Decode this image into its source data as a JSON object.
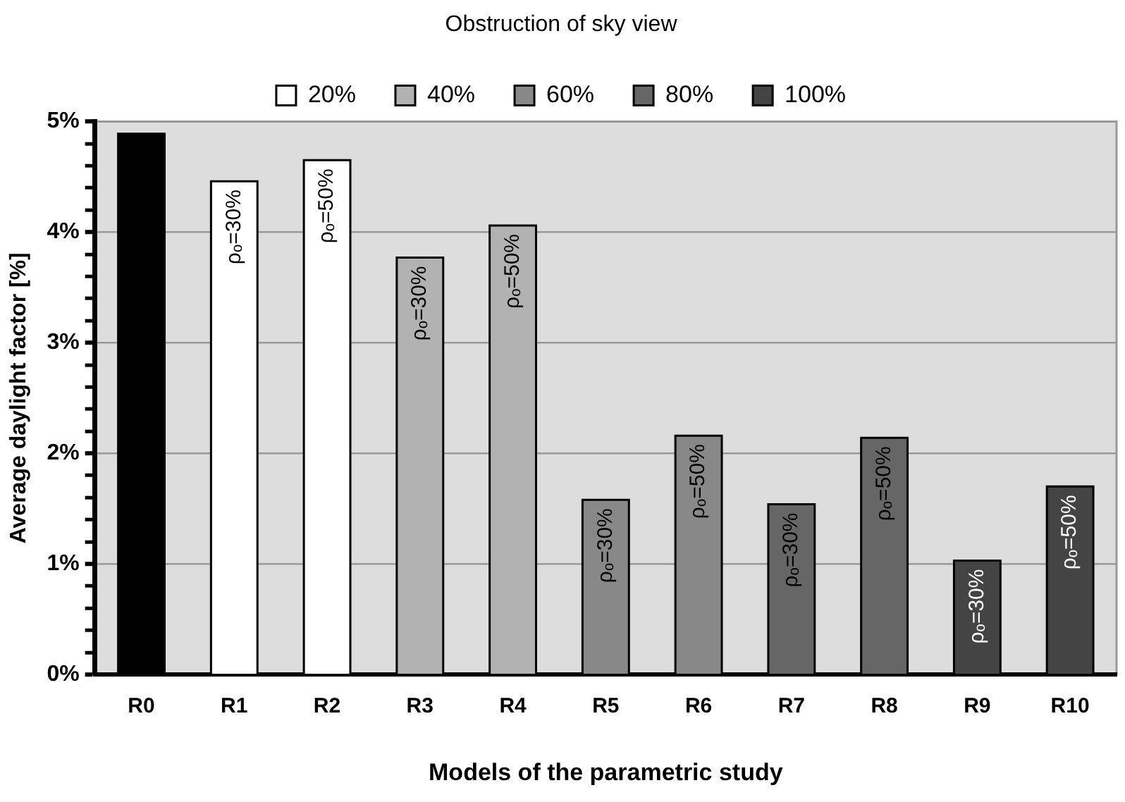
{
  "chart_data": {
    "type": "bar",
    "title": "Obstruction of sky view",
    "xlabel": "Models of the parametric study",
    "ylabel": "Average daylight factor [%]",
    "categories": [
      "R0",
      "R1",
      "R2",
      "R3",
      "R4",
      "R5",
      "R6",
      "R7",
      "R8",
      "R9",
      "R10"
    ],
    "series": [
      {
        "color": "#000000",
        "values": [
          4.89,
          null,
          null,
          null,
          null,
          null,
          null,
          null,
          null,
          null,
          null
        ]
      },
      {
        "name": "20%",
        "color": "#ffffff",
        "values": [
          null,
          4.46,
          4.65,
          null,
          null,
          null,
          null,
          null,
          null,
          null,
          null
        ]
      },
      {
        "name": "40%",
        "color": "#b2b2b2",
        "values": [
          null,
          null,
          null,
          3.77,
          4.06,
          null,
          null,
          null,
          null,
          null,
          null
        ]
      },
      {
        "name": "60%",
        "color": "#888888",
        "values": [
          null,
          null,
          null,
          null,
          null,
          1.58,
          2.16,
          null,
          null,
          null,
          null
        ]
      },
      {
        "name": "80%",
        "color": "#666666",
        "values": [
          null,
          null,
          null,
          null,
          null,
          null,
          null,
          1.54,
          2.14,
          null,
          null
        ]
      },
      {
        "name": "100%",
        "color": "#444444",
        "values": [
          null,
          null,
          null,
          null,
          null,
          null,
          null,
          null,
          null,
          1.03,
          1.7
        ]
      }
    ],
    "annotations": [
      {
        "text": "ρₒ=30%",
        "x": "R1",
        "y": 4.46
      },
      {
        "text": "ρₒ=50%",
        "x": "R2",
        "y": 4.65
      },
      {
        "text": "ρₒ=30%",
        "x": "R3",
        "y": 3.77
      },
      {
        "text": "ρₒ=50%",
        "x": "R4",
        "y": 4.06
      },
      {
        "text": "ρₒ=30%",
        "x": "R5",
        "y": 1.58
      },
      {
        "text": "ρₒ=50%",
        "x": "R6",
        "y": 2.16
      },
      {
        "text": "ρₒ=30%",
        "x": "R7",
        "y": 1.54
      },
      {
        "text": "ρₒ=50%",
        "x": "R8",
        "y": 2.14
      },
      {
        "text": "ρₒ=30%",
        "x": "R9",
        "y": 1.03
      },
      {
        "text": "ρₒ=50%",
        "x": "R10",
        "y": 1.7
      }
    ],
    "ylim": [
      0,
      5
    ],
    "yticks": [
      {
        "value": 0,
        "label": "0%"
      },
      {
        "value": 0.2,
        "label": null
      },
      {
        "value": 0.4,
        "label": null
      },
      {
        "value": 0.6,
        "label": null
      },
      {
        "value": 0.8,
        "label": null
      },
      {
        "value": 1,
        "label": "1%"
      },
      {
        "value": 1.2,
        "label": null
      },
      {
        "value": 1.4,
        "label": null
      },
      {
        "value": 1.6,
        "label": null
      },
      {
        "value": 1.8,
        "label": null
      },
      {
        "value": 2,
        "label": "2%"
      },
      {
        "value": 2.2,
        "label": null
      },
      {
        "value": 2.4,
        "label": null
      },
      {
        "value": 2.6,
        "label": null
      },
      {
        "value": 2.8,
        "label": null
      },
      {
        "value": 3,
        "label": "3%"
      },
      {
        "value": 3.2,
        "label": null
      },
      {
        "value": 3.4,
        "label": null
      },
      {
        "value": 3.6,
        "label": null
      },
      {
        "value": 3.8,
        "label": null
      },
      {
        "value": 4,
        "label": "4%"
      },
      {
        "value": 4.2,
        "label": null
      },
      {
        "value": 4.4,
        "label": null
      },
      {
        "value": 4.6,
        "label": null
      },
      {
        "value": 4.8,
        "label": null
      },
      {
        "value": 5,
        "label": "5%"
      }
    ],
    "grid": "y",
    "legend": "top",
    "stacked": true
  }
}
